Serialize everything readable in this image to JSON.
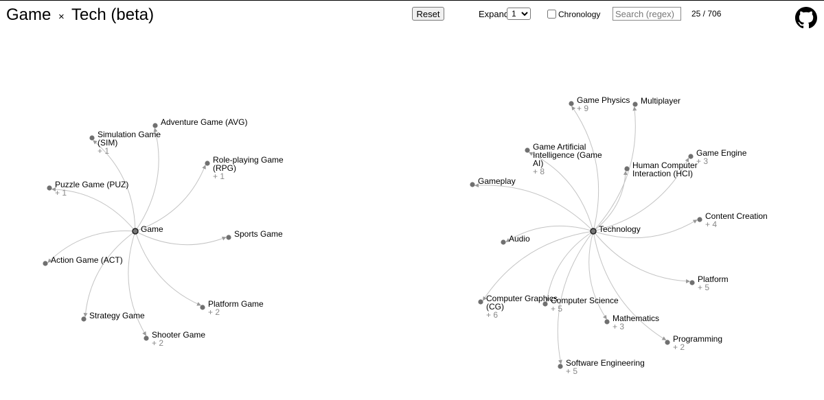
{
  "header": {
    "title_main": "Game",
    "title_times": "×",
    "title_rest": "Tech (beta)",
    "reset_label": "Reset",
    "expand_label": "Expand",
    "expand_value": "1",
    "chronology_label": "Chronology",
    "search_placeholder": "Search (regex)",
    "count": "25 / 706",
    "github_icon": "github-icon"
  },
  "graphs": [
    {
      "root": {
        "label": "Game"
      },
      "nodes": [
        {
          "label": [
            "Adventure Game (AVG)"
          ]
        },
        {
          "label": [
            "Simulation Game",
            "(SIM)"
          ],
          "extra": "+ 1"
        },
        {
          "label": [
            "Role-playing Game",
            "(RPG)"
          ],
          "extra": "+ 1"
        },
        {
          "label": [
            "Puzzle Game (PUZ)"
          ],
          "extra": "+ 1"
        },
        {
          "label": [
            "Sports Game"
          ]
        },
        {
          "label": [
            "Action Game (ACT)"
          ]
        },
        {
          "label": [
            "Platform Game"
          ],
          "extra": "+ 2"
        },
        {
          "label": [
            "Strategy Game"
          ]
        },
        {
          "label": [
            "Shooter Game"
          ],
          "extra": "+ 2"
        }
      ]
    },
    {
      "root": {
        "label": "Technology"
      },
      "nodes": [
        {
          "label": [
            "Game Physics"
          ],
          "extra": "+ 9"
        },
        {
          "label": [
            "Multiplayer"
          ]
        },
        {
          "label": [
            "Game Artificial",
            "Intelligence (Game",
            "AI)"
          ],
          "extra": "+ 8"
        },
        {
          "label": [
            "Game Engine"
          ],
          "extra": "+ 3"
        },
        {
          "label": [
            "Human Computer",
            "Interaction (HCI)"
          ]
        },
        {
          "label": [
            "Gameplay"
          ]
        },
        {
          "label": [
            "Content Creation"
          ],
          "extra": "+ 4"
        },
        {
          "label": [
            "Audio"
          ]
        },
        {
          "label": [
            "Platform"
          ],
          "extra": "+ 5"
        },
        {
          "label": [
            "Computer Graphics",
            "(CG)"
          ],
          "extra": "+ 6"
        },
        {
          "label": [
            "Computer Science"
          ],
          "extra": "+ 5"
        },
        {
          "label": [
            "Mathematics"
          ],
          "extra": "+ 3"
        },
        {
          "label": [
            "Programming"
          ],
          "extra": "+ 2"
        },
        {
          "label": [
            "Software Engineering"
          ],
          "extra": "+ 5"
        }
      ]
    }
  ]
}
